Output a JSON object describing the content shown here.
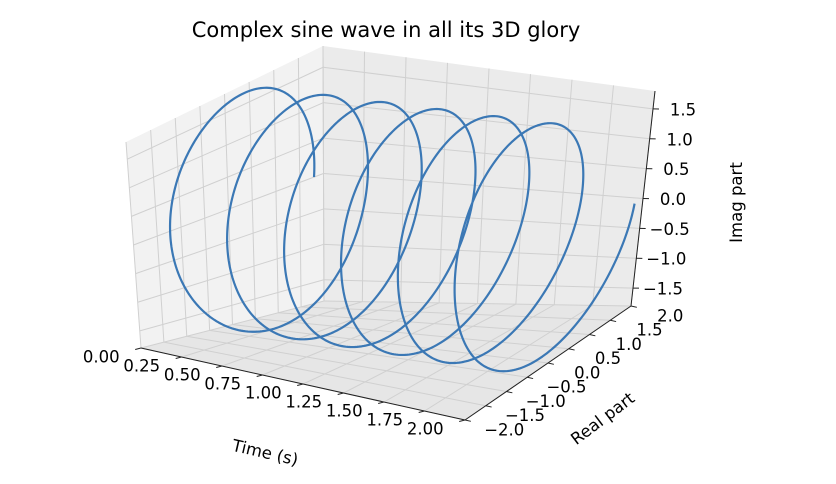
{
  "chart_data": {
    "type": "line",
    "projection": "3d",
    "title": "Complex sine wave in all its 3D glory",
    "xlabel": "Time (s)",
    "ylabel": "Real part",
    "zlabel": "Imag part",
    "xlim": [
      0.0,
      2.0
    ],
    "ylim": [
      -2.0,
      2.0
    ],
    "zlim": [
      -1.8,
      1.8
    ],
    "grid": true,
    "x_ticks": [
      "0.00",
      "0.25",
      "0.50",
      "0.75",
      "1.00",
      "1.25",
      "1.50",
      "1.75",
      "2.00"
    ],
    "y_ticks": [
      "−2.0",
      "−1.5",
      "−1.0",
      "−0.5",
      "0.0",
      "0.5",
      "1.0",
      "1.5",
      "2.0"
    ],
    "z_ticks": [
      "−1.5",
      "−1.0",
      "−0.5",
      "0.0",
      "0.5",
      "1.0",
      "1.5"
    ],
    "series": [
      {
        "color": "#3b78b5",
        "curve": "helix",
        "x_range": [
          0.0,
          2.0
        ],
        "frequency_hz": 3,
        "real_amplitude": 1.8,
        "imag_amplitude": 1.8
      }
    ]
  }
}
